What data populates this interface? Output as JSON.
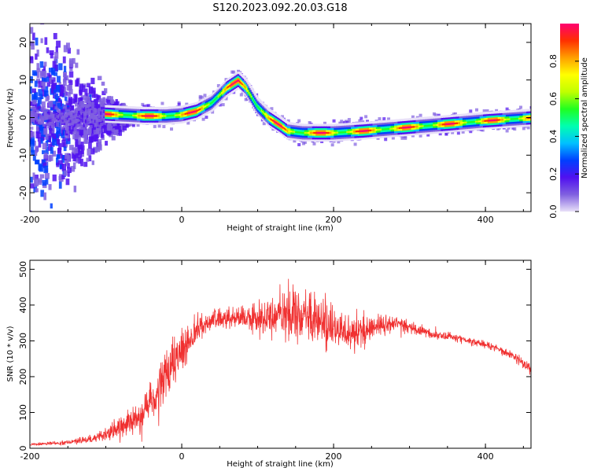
{
  "figure_title": "S120.2023.092.20.03.G18",
  "chart_data": [
    {
      "type": "heatmap",
      "title": "",
      "xlabel": "Height of straight line (km)",
      "ylabel": "Frequency (Hz)",
      "xlim": [
        -200,
        460
      ],
      "ylim": [
        -25,
        25
      ],
      "xticks": [
        -200,
        0,
        200,
        400
      ],
      "yticks": [
        20,
        10,
        0,
        -10,
        -20
      ],
      "colorbar": {
        "label": "Normalized spectral amplitude",
        "range": [
          0,
          1
        ],
        "ticks": [
          0.0,
          0.2,
          0.4,
          0.6,
          0.8
        ],
        "colors": [
          "#e8e0f8",
          "#8060e0",
          "#5010f0",
          "#0040ff",
          "#00c0ff",
          "#00ffb0",
          "#20ff20",
          "#c0ff00",
          "#ffff00",
          "#ffa000",
          "#ff3000",
          "#ff0070"
        ]
      },
      "ridge": {
        "x": [
          -200,
          -160,
          -130,
          -110,
          -100,
          -80,
          -50,
          -20,
          0,
          20,
          40,
          60,
          75,
          85,
          100,
          115,
          130,
          140,
          160,
          200,
          240,
          300,
          360,
          400,
          460
        ],
        "y": [
          0,
          0,
          0,
          0,
          1,
          0.8,
          0.5,
          0.5,
          0.8,
          1.8,
          4,
          8,
          10,
          8,
          3,
          0,
          -2,
          -3.5,
          -4,
          -4,
          -3.5,
          -2.5,
          -1.5,
          -0.8,
          0
        ]
      }
    },
    {
      "type": "line",
      "title": "",
      "xlabel": "Height of straight line (km)",
      "ylabel": "SNR (10 * v/v)",
      "xlim": [
        -200,
        460
      ],
      "ylim": [
        0,
        525
      ],
      "xticks": [
        -200,
        0,
        200,
        400
      ],
      "yticks": [
        0,
        100,
        200,
        300,
        400,
        500
      ],
      "color": "#f03030",
      "series": [
        {
          "x": [
            -200,
            -160,
            -120,
            -100,
            -80,
            -60,
            -40,
            -30,
            -20,
            -10,
            0,
            10,
            20,
            30,
            40,
            60,
            80,
            100,
            120,
            140,
            160,
            180,
            200,
            220,
            240,
            260,
            280,
            300,
            320,
            340,
            360,
            380,
            400,
            420,
            440,
            460
          ],
          "y": [
            10,
            15,
            25,
            40,
            60,
            80,
            130,
            160,
            200,
            230,
            270,
            300,
            330,
            350,
            360,
            365,
            365,
            360,
            370,
            380,
            370,
            350,
            330,
            320,
            330,
            345,
            350,
            340,
            325,
            315,
            310,
            300,
            290,
            275,
            255,
            220
          ],
          "noise": [
            3,
            5,
            10,
            20,
            30,
            40,
            60,
            70,
            80,
            80,
            70,
            55,
            40,
            30,
            25,
            25,
            30,
            40,
            55,
            70,
            70,
            65,
            60,
            50,
            40,
            30,
            22,
            18,
            15,
            12,
            10,
            10,
            10,
            10,
            12,
            15
          ]
        }
      ]
    }
  ]
}
